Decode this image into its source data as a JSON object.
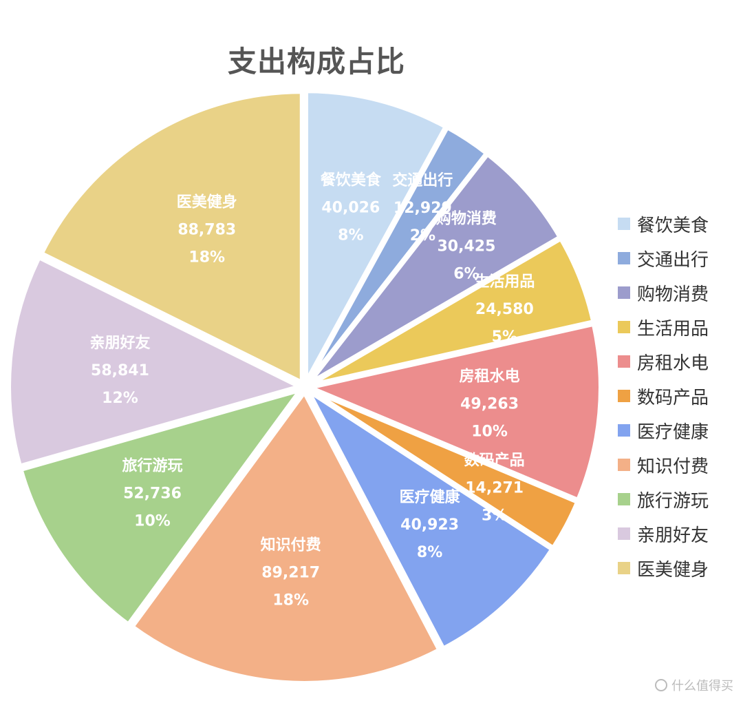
{
  "chart_data": {
    "type": "pie",
    "title": "支出构成占比",
    "slices": [
      {
        "name": "餐饮美食",
        "value": 40026,
        "value_label": "40,026",
        "percent_label": "8%",
        "color": "#c6dcf2"
      },
      {
        "name": "交通出行",
        "value": 12929,
        "value_label": "12,929",
        "percent_label": "2%",
        "color": "#8eabdd"
      },
      {
        "name": "购物消费",
        "value": 30425,
        "value_label": "30,425",
        "percent_label": "6%",
        "color": "#9c9ccc"
      },
      {
        "name": "生活用品",
        "value": 24580,
        "value_label": "24,580",
        "percent_label": "5%",
        "color": "#ebc95a"
      },
      {
        "name": "房租水电",
        "value": 49263,
        "value_label": "49,263",
        "percent_label": "10%",
        "color": "#ec8d8d"
      },
      {
        "name": "数码产品",
        "value": 14271,
        "value_label": "14,271",
        "percent_label": "3%",
        "color": "#efa143"
      },
      {
        "name": "医疗健康",
        "value": 40923,
        "value_label": "40,923",
        "percent_label": "8%",
        "color": "#82a3ef"
      },
      {
        "name": "知识付费",
        "value": 89217,
        "value_label": "89,217",
        "percent_label": "18%",
        "color": "#f3b087"
      },
      {
        "name": "旅行游玩",
        "value": 52736,
        "value_label": "52,736",
        "percent_label": "10%",
        "color": "#a7d18c"
      },
      {
        "name": "亲朋好友",
        "value": 58841,
        "value_label": "58,841",
        "percent_label": "12%",
        "color": "#d9c9df"
      },
      {
        "name": "医美健身",
        "value": 88783,
        "value_label": "88,783",
        "percent_label": "18%",
        "color": "#e9d287"
      }
    ],
    "legend_position": "right"
  },
  "watermark": {
    "text": "什么值得买"
  }
}
